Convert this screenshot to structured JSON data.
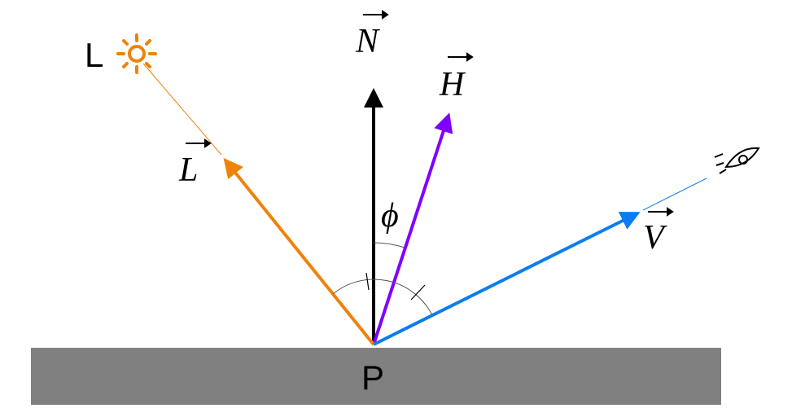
{
  "light_label": "L",
  "vectors": {
    "normal": "N",
    "halfway": "H",
    "light": "L",
    "view": "V"
  },
  "angle": "ϕ",
  "point": "P"
}
